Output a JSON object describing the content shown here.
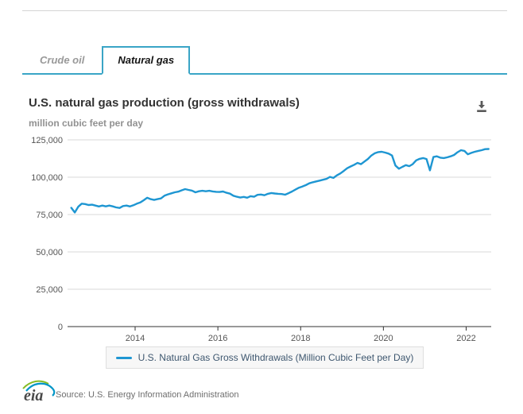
{
  "theme": {
    "accent": "#3aa5c6",
    "grid": "#d9d9d9",
    "axis": "#333333",
    "tick_label": "#555555"
  },
  "tabs": {
    "items": [
      {
        "label": "Crude oil",
        "active": false
      },
      {
        "label": "Natural gas",
        "active": true
      }
    ]
  },
  "header": {
    "title": "U.S. natural gas production (gross withdrawals)",
    "subtitle": "million cubic feet per day"
  },
  "icons": {
    "download": "tray-with-down-arrow"
  },
  "chart_data": {
    "type": "line",
    "title": "U.S. natural gas production (gross withdrawals)",
    "ylabel": "million cubic feet per day",
    "xlabel": "",
    "unit": "million cubic feet per day",
    "x_start": {
      "year": 2012,
      "month": 6
    },
    "x_interval": "monthly",
    "x_range": [
      2012.37,
      2022.65
    ],
    "x_ticks": [
      2014,
      2016,
      2018,
      2020,
      2022
    ],
    "y_ticks": [
      0,
      25000,
      50000,
      75000,
      100000,
      125000
    ],
    "ylim": [
      0,
      125000
    ],
    "grid": "horizontal-only",
    "legend_position": "bottom",
    "series": [
      {
        "name": "U.S. Natural Gas Gross Withdrawals (Million Cubic Feet per Day)",
        "color": "#1e96d2",
        "values": [
          79500,
          76400,
          80200,
          82300,
          82000,
          81400,
          81600,
          81000,
          80400,
          81000,
          80500,
          81000,
          80500,
          79800,
          79400,
          80700,
          81000,
          80400,
          81200,
          82300,
          83100,
          84600,
          86300,
          85300,
          84800,
          85300,
          85800,
          87600,
          88500,
          89200,
          89900,
          90300,
          91200,
          92000,
          91500,
          91000,
          89900,
          90600,
          90900,
          90600,
          90900,
          90500,
          90200,
          90100,
          90400,
          89600,
          89000,
          87600,
          86900,
          86400,
          86800,
          86300,
          87300,
          86900,
          88200,
          88400,
          87900,
          88900,
          89400,
          89100,
          88900,
          88700,
          88300,
          89300,
          90400,
          91700,
          93000,
          93800,
          94700,
          95900,
          96600,
          97200,
          97700,
          98300,
          98900,
          100200,
          99500,
          101200,
          102500,
          104200,
          106000,
          107200,
          108300,
          109600,
          108700,
          110500,
          112200,
          114500,
          116000,
          116800,
          117000,
          116500,
          115800,
          114500,
          107800,
          105700,
          106900,
          108100,
          107400,
          108700,
          111300,
          112300,
          112800,
          112200,
          104600,
          113500,
          114000,
          113100,
          112800,
          113300,
          114000,
          114900,
          116700,
          118100,
          117600,
          115300,
          116300,
          117000,
          117600,
          118100,
          118800,
          118900
        ]
      }
    ]
  },
  "footer": {
    "logo_text": "eia",
    "source": "Source: U.S. Energy Information Administration"
  }
}
